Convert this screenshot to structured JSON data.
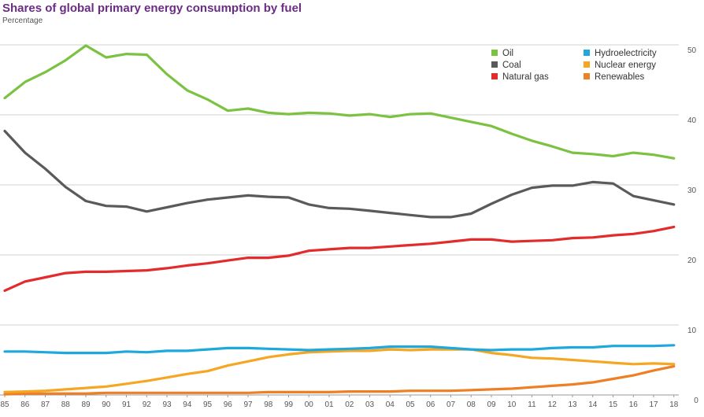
{
  "chart_data": {
    "type": "line",
    "title": "Shares of global primary energy consumption by fuel",
    "subtitle": "Percentage",
    "xlabel": "",
    "ylabel": "",
    "ylim": [
      0,
      50
    ],
    "yticks": [
      0,
      10,
      20,
      30,
      40,
      50
    ],
    "grid": true,
    "legend_position": "top-right",
    "categories": [
      "85",
      "86",
      "87",
      "88",
      "89",
      "90",
      "91",
      "92",
      "93",
      "94",
      "95",
      "96",
      "97",
      "98",
      "99",
      "00",
      "01",
      "02",
      "03",
      "04",
      "05",
      "06",
      "07",
      "08",
      "09",
      "10",
      "11",
      "12",
      "13",
      "14",
      "15",
      "16",
      "17",
      "18"
    ],
    "x": [
      1985,
      1986,
      1987,
      1988,
      1989,
      1990,
      1991,
      1992,
      1993,
      1994,
      1995,
      1996,
      1997,
      1998,
      1999,
      2000,
      2001,
      2002,
      2003,
      2004,
      2005,
      2006,
      2007,
      2008,
      2009,
      2010,
      2011,
      2012,
      2013,
      2014,
      2015,
      2016,
      2017,
      2018
    ],
    "series": [
      {
        "name": "Oil",
        "color": "#7cc242",
        "values": [
          42.4,
          44.7,
          46.1,
          47.8,
          49.9,
          48.2,
          48.7,
          48.6,
          45.8,
          43.5,
          42.2,
          40.6,
          40.9,
          40.3,
          40.1,
          40.3,
          40.2,
          39.9,
          40.1,
          39.7,
          40.1,
          40.2,
          39.6,
          39.0,
          38.4,
          37.3,
          36.3,
          35.5,
          34.6,
          34.4,
          34.1,
          34.6,
          34.3,
          33.8
        ]
      },
      {
        "name": "Coal",
        "color": "#595a5c",
        "values": [
          37.7,
          34.6,
          32.3,
          29.7,
          27.7,
          27.0,
          26.9,
          26.2,
          26.8,
          27.4,
          27.9,
          28.2,
          28.5,
          28.3,
          28.2,
          27.2,
          26.7,
          26.6,
          26.3,
          26.0,
          25.7,
          25.4,
          25.4,
          25.9,
          27.3,
          28.6,
          29.6,
          29.9,
          29.9,
          30.4,
          30.2,
          28.4,
          27.8,
          27.2
        ]
      },
      {
        "name": "Natural gas",
        "color": "#e32b2b",
        "values": [
          14.9,
          16.2,
          16.8,
          17.4,
          17.6,
          17.6,
          17.7,
          17.8,
          18.1,
          18.5,
          18.8,
          19.2,
          19.6,
          19.6,
          19.9,
          20.6,
          20.8,
          21.0,
          21.0,
          21.2,
          21.4,
          21.6,
          21.9,
          22.2,
          22.2,
          21.9,
          22.0,
          22.1,
          22.4,
          22.5,
          22.8,
          23.0,
          23.4,
          24.0
        ]
      },
      {
        "name": "Hydroelectricity",
        "color": "#1fa8dc",
        "values": [
          6.2,
          6.2,
          6.1,
          6.0,
          6.0,
          6.0,
          6.2,
          6.1,
          6.3,
          6.3,
          6.5,
          6.7,
          6.7,
          6.6,
          6.5,
          6.4,
          6.5,
          6.6,
          6.7,
          6.9,
          6.9,
          6.9,
          6.7,
          6.5,
          6.4,
          6.5,
          6.5,
          6.7,
          6.8,
          6.8,
          7.0,
          7.0,
          7.0,
          7.1
        ]
      },
      {
        "name": "Nuclear energy",
        "color": "#f5a623",
        "values": [
          0.4,
          0.5,
          0.6,
          0.8,
          1.0,
          1.2,
          1.6,
          2.0,
          2.5,
          3.0,
          3.4,
          4.2,
          4.8,
          5.4,
          5.8,
          6.1,
          6.2,
          6.3,
          6.3,
          6.5,
          6.4,
          6.5,
          6.5,
          6.5,
          6.0,
          5.7,
          5.3,
          5.2,
          5.0,
          4.8,
          4.6,
          4.4,
          4.5,
          4.4
        ]
      },
      {
        "name": "Renewables",
        "color": "#ee7f24",
        "values": [
          0.1,
          0.2,
          0.2,
          0.2,
          0.2,
          0.3,
          0.3,
          0.3,
          0.3,
          0.3,
          0.3,
          0.3,
          0.3,
          0.4,
          0.4,
          0.4,
          0.4,
          0.5,
          0.5,
          0.5,
          0.6,
          0.6,
          0.6,
          0.7,
          0.8,
          0.9,
          1.1,
          1.3,
          1.5,
          1.8,
          2.3,
          2.8,
          3.5,
          4.1
        ]
      }
    ]
  }
}
